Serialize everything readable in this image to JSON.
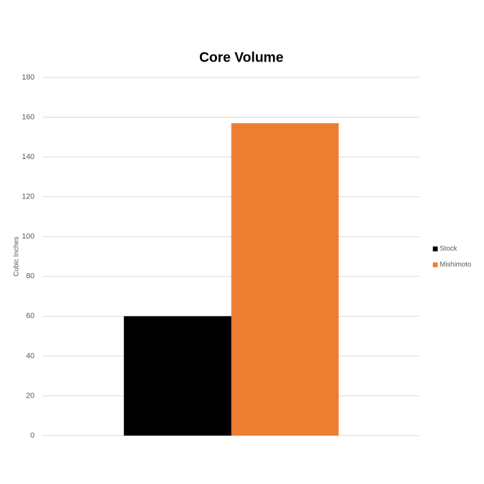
{
  "chart_data": {
    "type": "bar",
    "title": "Core Volume",
    "y_label": "Cubic Inches",
    "categories": [
      null
    ],
    "series": [
      {
        "name": "Stock",
        "color": "#000000",
        "values": [
          60
        ]
      },
      {
        "name": "Mishimoto",
        "color": "#ed7d31",
        "values": [
          157
        ]
      }
    ],
    "ylim": [
      0,
      180
    ],
    "yticks": [
      0,
      20,
      40,
      60,
      80,
      100,
      120,
      140,
      160,
      180
    ],
    "grid": true,
    "legend": "right"
  }
}
